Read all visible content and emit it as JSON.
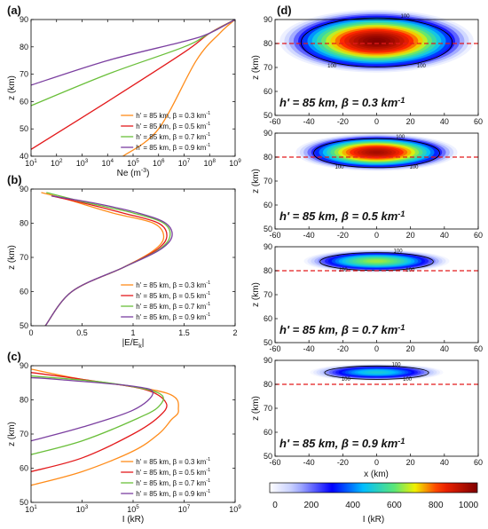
{
  "colors": {
    "orange": "#ff8c1a",
    "red": "#e31a1c",
    "green": "#6abf3a",
    "purple": "#7b3fa0",
    "ref_line": "#e31a1c",
    "colorbar_stops": [
      "#ffffff",
      "#0000ff",
      "#00c0ff",
      "#f0f000",
      "#ff2000",
      "#800000"
    ]
  },
  "chart_data": [
    {
      "id": "a",
      "panel_label": "(a)",
      "type": "line",
      "xscale": "log",
      "xlim": [
        10,
        1000000000
      ],
      "xticks": [
        "10^1",
        "10^2",
        "10^3",
        "10^4",
        "10^5",
        "10^6",
        "10^7",
        "10^8",
        "10^9"
      ],
      "ylim": [
        40,
        90
      ],
      "yticks": [
        40,
        50,
        60,
        70,
        80,
        90
      ],
      "xlabel": "Ne (m^-3)",
      "ylabel": "z (km)",
      "legend_position": "lower-right",
      "series": [
        {
          "name": "h' = 85 km, β = 0.3 km^-1",
          "color": "orange",
          "x": [
            40000,
            1000000,
            30000000,
            250000000,
            1000000000
          ],
          "y": [
            40,
            50,
            75,
            85,
            90
          ]
        },
        {
          "name": "h' = 85 km, β = 0.5 km^-1",
          "color": "red",
          "x": [
            10,
            10000,
            10000000,
            100000000,
            1000000000
          ],
          "y": [
            42.5,
            60,
            78,
            85,
            90
          ]
        },
        {
          "name": "h' = 85 km, β = 0.7 km^-1",
          "color": "green",
          "x": [
            10,
            10000,
            10000000,
            100000000,
            1000000000
          ],
          "y": [
            58.5,
            70,
            80,
            85,
            90
          ]
        },
        {
          "name": "h' = 85 km, β = 0.9 km^-1",
          "color": "purple",
          "x": [
            10,
            10000,
            10000000,
            100000000,
            1000000000
          ],
          "y": [
            66,
            75,
            82,
            85,
            90
          ]
        }
      ]
    },
    {
      "id": "b",
      "panel_label": "(b)",
      "type": "line",
      "xlim": [
        0,
        2
      ],
      "xticks": [
        0,
        0.5,
        1,
        1.5,
        2
      ],
      "ylim": [
        50,
        90
      ],
      "yticks": [
        50,
        60,
        70,
        80,
        90
      ],
      "xlabel": "|E/E_k|",
      "ylabel": "z (km)",
      "legend_position": "lower-right",
      "series": [
        {
          "name": "h' = 85 km, β = 0.3 km^-1",
          "color": "orange",
          "x": [
            0.14,
            0.4,
            0.9,
            1.2,
            1.3,
            1.2,
            0.8,
            0.35,
            0.1
          ],
          "y": [
            50,
            60,
            67,
            72,
            76,
            80,
            83,
            87,
            89
          ]
        },
        {
          "name": "h' = 85 km, β = 0.5 km^-1",
          "color": "red",
          "x": [
            0.14,
            0.4,
            0.9,
            1.22,
            1.33,
            1.25,
            0.9,
            0.5,
            0.2
          ],
          "y": [
            50,
            60,
            67,
            72,
            76,
            80,
            83,
            86,
            88
          ]
        },
        {
          "name": "h' = 85 km, β = 0.7 km^-1",
          "color": "green",
          "x": [
            0.14,
            0.4,
            0.9,
            1.24,
            1.36,
            1.3,
            1.0,
            0.55,
            0.15
          ],
          "y": [
            50,
            60,
            67,
            72,
            76,
            80,
            83,
            86,
            89
          ]
        },
        {
          "name": "h' = 85 km, β = 0.9 km^-1",
          "color": "purple",
          "x": [
            0.14,
            0.4,
            0.9,
            1.25,
            1.38,
            1.32,
            1.05,
            0.6,
            0.2
          ],
          "y": [
            50,
            60,
            67,
            72,
            76,
            80,
            83,
            86,
            88
          ]
        }
      ]
    },
    {
      "id": "c",
      "panel_label": "(c)",
      "type": "line",
      "xscale": "log",
      "xlim": [
        10,
        1000000000
      ],
      "xticks": [
        "10^1",
        "10^3",
        "10^5",
        "10^7",
        "10^9"
      ],
      "ylim": [
        50,
        90
      ],
      "yticks": [
        50,
        60,
        70,
        80,
        90
      ],
      "xlabel": "I (kR)",
      "ylabel": "z (km)",
      "legend_position": "lower-right",
      "series": [
        {
          "name": "h' = 85 km, β = 0.3 km^-1",
          "color": "orange",
          "x": [
            10,
            1000,
            100000,
            1000000,
            3000000,
            6000000,
            2000000,
            1000,
            10
          ],
          "y": [
            55,
            59,
            65,
            70,
            74,
            77,
            82,
            86,
            89
          ]
        },
        {
          "name": "h' = 85 km, β = 0.5 km^-1",
          "color": "red",
          "x": [
            10,
            1000,
            100000,
            1000000,
            2000000,
            300000,
            1000,
            10
          ],
          "y": [
            59,
            63,
            70,
            75,
            79,
            83,
            86,
            88
          ]
        },
        {
          "name": "h' = 85 km, β = 0.7 km^-1",
          "color": "green",
          "x": [
            10,
            1000,
            100000,
            1000000,
            1000000,
            10000,
            10
          ],
          "y": [
            64,
            68,
            74,
            78,
            82,
            85,
            87
          ]
        },
        {
          "name": "h' = 85 km, β = 0.9 km^-1",
          "color": "purple",
          "x": [
            10,
            1000,
            100000,
            600000,
            100000,
            100,
            10
          ],
          "y": [
            68,
            72,
            77,
            82,
            84,
            86,
            86.5
          ]
        }
      ]
    },
    {
      "id": "d",
      "panel_label": "(d)",
      "type": "heatmap",
      "xlim": [
        -60,
        60
      ],
      "xticks": [
        -60,
        -40,
        -20,
        0,
        20,
        40,
        60
      ],
      "ylim": [
        50,
        90
      ],
      "yticks": [
        50,
        60,
        70,
        80,
        90
      ],
      "xlabel": "x (km)",
      "ylabel": "z (km)",
      "colorbar": {
        "label": "I (kR)",
        "range": [
          0,
          1000
        ],
        "ticks": [
          0,
          200,
          400,
          600,
          800,
          1000
        ]
      },
      "reference_line_z": 80,
      "contour_label": "100",
      "subpanels": [
        {
          "label": "h' = 85 km, β = 0.3 km^-1",
          "center_z": 81,
          "peak": 1000,
          "half_width_x": 48,
          "half_height_z": 11
        },
        {
          "label": "h' = 85 km, β = 0.5 km^-1",
          "center_z": 82,
          "peak": 950,
          "half_width_x": 40,
          "half_height_z": 6.5
        },
        {
          "label": "h' = 85 km, β = 0.7 km^-1",
          "center_z": 84,
          "peak": 650,
          "half_width_x": 36,
          "half_height_z": 4
        },
        {
          "label": "h' = 85 km, β = 0.9 km^-1",
          "center_z": 85,
          "peak": 500,
          "half_width_x": 33,
          "half_height_z": 3
        }
      ]
    }
  ]
}
